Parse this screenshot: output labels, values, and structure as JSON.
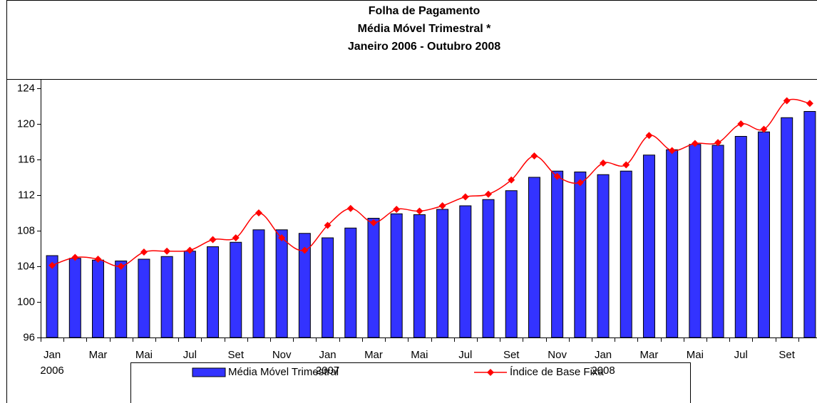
{
  "chart_data": {
    "type": "bar-line",
    "title": [
      "Folha de Pagamento",
      "Média Móvel Trimestral *",
      "Janeiro 2006 - Outubro 2008"
    ],
    "categories": [
      "Jan",
      null,
      "Mar",
      null,
      "Mai",
      null,
      "Jul",
      null,
      "Set",
      null,
      "Nov",
      null,
      "Jan",
      null,
      "Mar",
      null,
      "Mai",
      null,
      "Jul",
      null,
      "Set",
      null,
      "Nov",
      null,
      "Jan",
      null,
      "Mar",
      null,
      "Mai",
      null,
      "Jul",
      null,
      "Set",
      null
    ],
    "years": [
      "2006",
      null,
      null,
      null,
      null,
      null,
      null,
      null,
      null,
      null,
      null,
      null,
      "2007",
      null,
      null,
      null,
      null,
      null,
      null,
      null,
      null,
      null,
      null,
      null,
      "2008",
      null,
      null,
      null,
      null,
      null,
      null,
      null,
      null,
      null
    ],
    "series": [
      {
        "name": "Média Móvel Trimestral",
        "kind": "bar",
        "color": "#3333ff",
        "values": [
          105.2,
          104.9,
          104.7,
          104.6,
          104.8,
          105.1,
          105.7,
          106.2,
          106.7,
          108.1,
          108.1,
          107.7,
          107.2,
          108.3,
          109.4,
          109.9,
          109.8,
          110.4,
          110.8,
          111.5,
          112.5,
          114.0,
          114.7,
          114.6,
          114.3,
          114.7,
          116.5,
          117.1,
          117.7,
          117.6,
          118.6,
          119.1,
          120.7,
          121.4
        ]
      },
      {
        "name": "Índice de Base Fixa",
        "kind": "line",
        "color": "#ff0000",
        "values": [
          104.1,
          105.0,
          104.8,
          104.0,
          105.6,
          105.7,
          105.8,
          107.0,
          107.2,
          110.0,
          107.2,
          105.8,
          108.6,
          110.5,
          108.9,
          110.4,
          110.2,
          110.8,
          111.8,
          112.1,
          113.7,
          116.4,
          114.1,
          113.4,
          115.6,
          115.4,
          118.7,
          117.0,
          117.8,
          117.9,
          120.0,
          119.4,
          122.6,
          122.3
        ]
      }
    ],
    "ylim": [
      96,
      124
    ],
    "yticks": [
      96,
      100,
      104,
      108,
      112,
      116,
      120,
      124
    ]
  }
}
